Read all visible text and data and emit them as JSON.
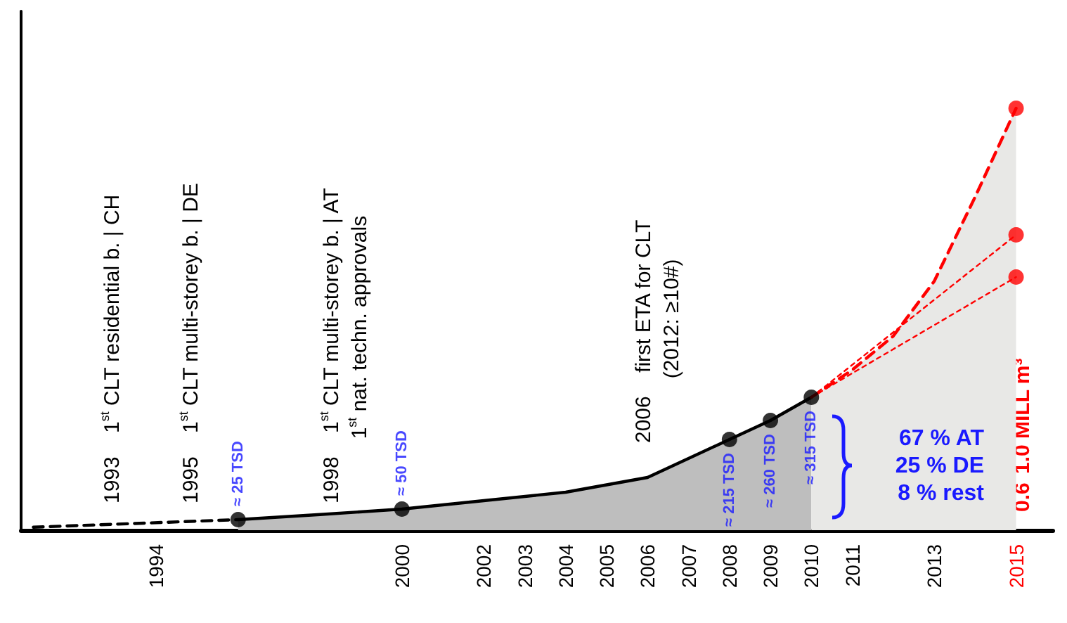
{
  "chart_data": {
    "type": "line",
    "grid": false,
    "tick_labels": "x",
    "xlim": [
      1990.7,
      2015.9
    ],
    "ylim": [
      0,
      1230
    ],
    "xticks": [
      1994,
      2000,
      2002,
      2003,
      2004,
      2005,
      2006,
      2007,
      2008,
      2009,
      2010,
      2011,
      2013,
      2015
    ],
    "series": [
      {
        "type": "area",
        "color": "#000000",
        "marker": "none",
        "line_style": "solid",
        "x": [
          1996,
          1998,
          2000,
          2002,
          2004,
          2006,
          2008,
          2009,
          2010
        ],
        "values": [
          25,
          37,
          50,
          70,
          90,
          125,
          215,
          260,
          315
        ]
      },
      {
        "type": "line",
        "color": "#000000",
        "marker": "none",
        "line_style": "dashed",
        "x": [
          1991,
          1996
        ],
        "values": [
          7,
          25
        ]
      },
      {
        "type": "area",
        "color": "#ff0000",
        "marker": "none",
        "line_style": "dashed",
        "x": [
          2010,
          2011,
          2012,
          2013,
          2014,
          2015
        ],
        "values": [
          315,
          380,
          460,
          590,
          790,
          1000
        ]
      },
      {
        "type": "line",
        "color": "#ff0000",
        "marker": "none",
        "line_style": "dotted",
        "x": [
          2010,
          2015
        ],
        "values": [
          315,
          700
        ]
      },
      {
        "type": "line",
        "color": "#ff0000",
        "marker": "none",
        "line_style": "dotted",
        "x": [
          2010,
          2015
        ],
        "values": [
          315,
          600
        ]
      },
      {
        "type": "scatter",
        "color": "#000000",
        "marker": "circle",
        "x": [
          1996,
          2000,
          2008,
          2009,
          2010
        ],
        "values": [
          25,
          50,
          215,
          260,
          315
        ],
        "value_labels": [
          "≈ 25 TSD",
          "≈ 50 TSD",
          "≈ 215 TSD",
          "≈ 260 TSD",
          "≈ 315 TSD"
        ]
      },
      {
        "type": "scatter",
        "color": "#ff0000",
        "marker": "circle",
        "x": [
          2015,
          2015,
          2015
        ],
        "values": [
          1000,
          700,
          600
        ]
      }
    ],
    "annotations": [
      "1993    1$^{st}$ CLT residential b. | CH",
      "1995    1$^{st}$ CLT multi-storey b. | DE",
      "1998    1$^{st}$ CLT multi-storey b. | AT\n           1$^{st}$ nat. techn. approvals",
      "2006    first ETA for CLT\n           (2012: ≥10#)",
      "67 % AT\n25 % DE\n8 % rest",
      "0.6",
      "1.0 MILL m³"
    ]
  }
}
